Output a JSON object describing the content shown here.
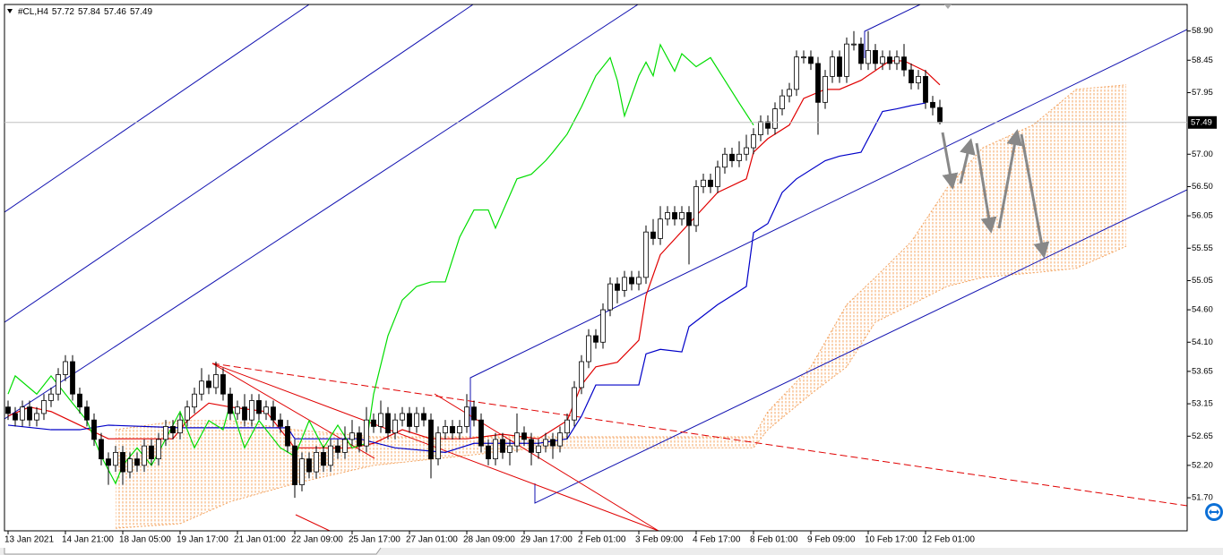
{
  "chart_data": {
    "type": "candlestick",
    "title": "#CL,H4",
    "categories": [
      "13 Jan 2021",
      null,
      null,
      null,
      null,
      null,
      null,
      null,
      "14 Jan 21:00",
      null,
      null,
      null,
      null,
      null,
      null,
      null,
      "18 Jan 05:00",
      null,
      null,
      null,
      null,
      null,
      null,
      null,
      "19 Jan 17:00",
      null,
      null,
      null,
      null,
      null,
      null,
      null,
      "21 Jan 01:00",
      null,
      null,
      null,
      null,
      null,
      null,
      null,
      "22 Jan 09:00",
      null,
      null,
      null,
      null,
      null,
      null,
      null,
      "25 Jan 17:00",
      null,
      null,
      null,
      null,
      null,
      null,
      null,
      "27 Jan 01:00",
      null,
      null,
      null,
      null,
      null,
      null,
      null,
      "28 Jan 09:00",
      null,
      null,
      null,
      null,
      null,
      null,
      null,
      "29 Jan 17:00",
      null,
      null,
      null,
      null,
      null,
      null,
      null,
      "2 Feb 01:00",
      null,
      null,
      null,
      null,
      null,
      null,
      null,
      "3 Feb 09:00",
      null,
      null,
      null,
      null,
      null,
      null,
      null,
      "4 Feb 17:00",
      null,
      null,
      null,
      null,
      null,
      null,
      null,
      "8 Feb 01:00",
      null,
      null,
      null,
      null,
      null,
      null,
      null,
      "9 Feb 09:00",
      null,
      null,
      null,
      null,
      null,
      null,
      null,
      "10 Feb 17:00",
      null,
      null,
      null,
      null,
      null,
      null,
      null,
      "12 Feb 01:00",
      null,
      null,
      null,
      null,
      null,
      null,
      null,
      null,
      null,
      null,
      null,
      null,
      null,
      null,
      null,
      null,
      null,
      null,
      null,
      null,
      null,
      null,
      null,
      null,
      null,
      null,
      null,
      null
    ],
    "ohlc": [
      [
        53.1,
        53.2,
        52.9,
        53.0
      ],
      [
        53.0,
        53.1,
        52.8,
        52.9
      ],
      [
        52.9,
        53.2,
        52.8,
        53.1
      ],
      [
        53.1,
        53.2,
        52.8,
        52.9
      ],
      [
        52.9,
        53.1,
        52.8,
        53.0
      ],
      [
        53.0,
        53.3,
        52.9,
        53.2
      ],
      [
        53.2,
        53.4,
        53.1,
        53.3
      ],
      [
        53.3,
        53.7,
        53.2,
        53.6
      ],
      [
        53.6,
        53.9,
        53.5,
        53.8
      ],
      [
        53.8,
        53.9,
        53.2,
        53.3
      ],
      [
        53.3,
        53.4,
        53.0,
        53.1
      ],
      [
        53.1,
        53.2,
        52.8,
        52.9
      ],
      [
        52.9,
        53.0,
        52.5,
        52.6
      ],
      [
        52.6,
        52.7,
        52.2,
        52.3
      ],
      [
        52.3,
        52.4,
        51.9,
        52.2
      ],
      [
        52.2,
        52.5,
        52.1,
        52.4
      ],
      [
        52.4,
        52.5,
        51.9,
        52.1
      ],
      [
        52.1,
        52.4,
        52.0,
        52.3
      ],
      [
        52.3,
        52.4,
        52.1,
        52.2
      ],
      [
        52.2,
        52.6,
        52.1,
        52.5
      ],
      [
        52.5,
        52.6,
        52.2,
        52.3
      ],
      [
        52.3,
        52.7,
        52.2,
        52.6
      ],
      [
        52.6,
        52.9,
        52.5,
        52.8
      ],
      [
        52.8,
        52.9,
        52.6,
        52.7
      ],
      [
        52.7,
        53.0,
        52.6,
        52.9
      ],
      [
        52.9,
        53.2,
        52.8,
        53.1
      ],
      [
        53.1,
        53.4,
        53.0,
        53.3
      ],
      [
        53.3,
        53.7,
        53.2,
        53.5
      ],
      [
        53.5,
        53.6,
        53.3,
        53.4
      ],
      [
        53.4,
        53.8,
        53.3,
        53.6
      ],
      [
        53.6,
        53.7,
        53.2,
        53.3
      ],
      [
        53.3,
        53.4,
        52.9,
        53.0
      ],
      [
        53.0,
        53.2,
        52.9,
        53.1
      ],
      [
        53.1,
        53.3,
        52.8,
        52.9
      ],
      [
        52.9,
        53.3,
        52.8,
        53.2
      ],
      [
        53.2,
        53.3,
        52.9,
        53.0
      ],
      [
        53.0,
        53.2,
        52.9,
        53.1
      ],
      [
        53.1,
        53.2,
        52.8,
        52.9
      ],
      [
        52.9,
        53.0,
        52.7,
        52.8
      ],
      [
        52.8,
        52.9,
        52.4,
        52.5
      ],
      [
        52.5,
        52.6,
        51.7,
        51.9
      ],
      [
        51.9,
        52.4,
        51.8,
        52.3
      ],
      [
        52.3,
        52.4,
        52.0,
        52.1
      ],
      [
        52.1,
        52.5,
        52.0,
        52.4
      ],
      [
        52.4,
        52.5,
        52.1,
        52.2
      ],
      [
        52.2,
        52.6,
        52.1,
        52.5
      ],
      [
        52.5,
        52.6,
        52.3,
        52.4
      ],
      [
        52.4,
        52.8,
        52.3,
        52.6
      ],
      [
        52.6,
        52.9,
        52.5,
        52.7
      ],
      [
        52.7,
        52.8,
        52.4,
        52.5
      ],
      [
        52.5,
        53.1,
        52.4,
        52.9
      ],
      [
        52.9,
        53.0,
        52.7,
        52.8
      ],
      [
        52.8,
        53.2,
        52.7,
        53.0
      ],
      [
        53.0,
        53.1,
        52.6,
        52.7
      ],
      [
        52.7,
        53.0,
        52.6,
        52.9
      ],
      [
        52.9,
        53.1,
        52.8,
        53.0
      ],
      [
        53.0,
        53.1,
        52.7,
        52.8
      ],
      [
        52.8,
        53.1,
        52.7,
        53.0
      ],
      [
        53.0,
        53.1,
        52.8,
        52.9
      ],
      [
        52.9,
        53.0,
        52.0,
        52.3
      ],
      [
        52.3,
        52.8,
        52.2,
        52.7
      ],
      [
        52.7,
        52.9,
        52.6,
        52.8
      ],
      [
        52.8,
        52.9,
        52.6,
        52.7
      ],
      [
        52.7,
        52.9,
        52.6,
        52.8
      ],
      [
        52.8,
        53.3,
        52.7,
        53.1
      ],
      [
        53.1,
        53.2,
        52.8,
        52.9
      ],
      [
        52.9,
        53.0,
        52.4,
        52.5
      ],
      [
        52.5,
        52.6,
        52.2,
        52.3
      ],
      [
        52.3,
        52.7,
        52.2,
        52.6
      ],
      [
        52.6,
        52.7,
        52.3,
        52.4
      ],
      [
        52.4,
        52.6,
        52.2,
        52.5
      ],
      [
        52.5,
        53.0,
        52.4,
        52.7
      ],
      [
        52.7,
        52.8,
        52.5,
        52.6
      ],
      [
        52.6,
        52.7,
        52.2,
        52.4
      ],
      [
        52.4,
        52.6,
        52.3,
        52.5
      ],
      [
        52.5,
        52.7,
        52.4,
        52.6
      ],
      [
        52.6,
        52.7,
        52.3,
        52.5
      ],
      [
        52.5,
        52.8,
        52.4,
        52.7
      ],
      [
        52.7,
        53.0,
        52.6,
        52.9
      ],
      [
        52.9,
        53.5,
        52.8,
        53.4
      ],
      [
        53.4,
        53.9,
        53.3,
        53.8
      ],
      [
        53.8,
        54.3,
        53.7,
        54.2
      ],
      [
        54.2,
        54.3,
        54.0,
        54.1
      ],
      [
        54.1,
        54.7,
        54.0,
        54.6
      ],
      [
        54.6,
        55.1,
        54.5,
        55.0
      ],
      [
        55.0,
        55.1,
        54.7,
        54.9
      ],
      [
        54.9,
        55.2,
        54.8,
        55.1
      ],
      [
        55.1,
        55.2,
        54.9,
        55.0
      ],
      [
        55.0,
        55.2,
        54.9,
        55.1
      ],
      [
        55.1,
        55.9,
        55.0,
        55.8
      ],
      [
        55.8,
        56.0,
        55.6,
        55.7
      ],
      [
        55.7,
        56.2,
        55.6,
        56.0
      ],
      [
        56.0,
        56.2,
        55.9,
        56.1
      ],
      [
        56.1,
        56.2,
        55.9,
        56.0
      ],
      [
        56.0,
        56.2,
        55.9,
        56.1
      ],
      [
        56.1,
        56.2,
        55.3,
        55.9
      ],
      [
        55.9,
        56.6,
        55.8,
        56.5
      ],
      [
        56.5,
        56.7,
        56.4,
        56.6
      ],
      [
        56.6,
        56.7,
        56.4,
        56.5
      ],
      [
        56.5,
        56.9,
        56.4,
        56.8
      ],
      [
        56.8,
        57.1,
        56.7,
        57.0
      ],
      [
        57.0,
        57.1,
        56.8,
        56.9
      ],
      [
        56.9,
        57.2,
        56.8,
        57.0
      ],
      [
        57.0,
        57.3,
        56.9,
        57.1
      ],
      [
        57.1,
        57.4,
        57.0,
        57.3
      ],
      [
        57.3,
        57.6,
        57.2,
        57.5
      ],
      [
        57.5,
        57.6,
        57.3,
        57.4
      ],
      [
        57.4,
        57.8,
        57.3,
        57.7
      ],
      [
        57.7,
        58.0,
        57.6,
        57.9
      ],
      [
        57.9,
        58.1,
        57.8,
        58.0
      ],
      [
        58.0,
        58.6,
        57.9,
        58.5
      ],
      [
        58.5,
        58.6,
        58.4,
        58.5
      ],
      [
        58.5,
        58.6,
        58.3,
        58.4
      ],
      [
        58.4,
        58.5,
        57.3,
        57.8
      ],
      [
        57.8,
        58.3,
        57.7,
        58.2
      ],
      [
        58.2,
        58.6,
        58.1,
        58.5
      ],
      [
        58.5,
        58.6,
        58.1,
        58.2
      ],
      [
        58.2,
        58.8,
        58.1,
        58.7
      ],
      [
        58.7,
        58.9,
        58.6,
        58.7
      ],
      [
        58.7,
        58.8,
        58.3,
        58.4
      ],
      [
        58.4,
        58.9,
        58.3,
        58.6
      ],
      [
        58.6,
        58.7,
        58.3,
        58.4
      ],
      [
        58.4,
        58.6,
        58.3,
        58.5
      ],
      [
        58.5,
        58.6,
        58.3,
        58.4
      ],
      [
        58.4,
        58.6,
        58.3,
        58.5
      ],
      [
        58.5,
        58.7,
        58.2,
        58.3
      ],
      [
        58.3,
        58.4,
        58.0,
        58.1
      ],
      [
        58.1,
        58.3,
        58.0,
        58.2
      ],
      [
        58.2,
        58.3,
        57.7,
        57.8
      ],
      [
        57.8,
        57.9,
        57.6,
        57.72
      ],
      [
        57.72,
        57.84,
        57.46,
        57.49
      ],
      null,
      null,
      null,
      null,
      null,
      null,
      null,
      null,
      null,
      null,
      null,
      null,
      null,
      null,
      null,
      null,
      null,
      null,
      null,
      null,
      null,
      null,
      null,
      null,
      null,
      null
    ],
    "up_color": "#ffffff",
    "down_color": "#000000",
    "lines": [
      {
        "color": "#e00000",
        "x": [
          0,
          3,
          6,
          10,
          14,
          18,
          23,
          25,
          28,
          31,
          36,
          40,
          44,
          48,
          51,
          55,
          59,
          64,
          69,
          74,
          78,
          80,
          82,
          85,
          88,
          89,
          91,
          95,
          99,
          103,
          104,
          106,
          109,
          111,
          114,
          116,
          119,
          123,
          125,
          128,
          130
        ],
        "values": [
          52.96,
          53.1,
          53.03,
          52.82,
          52.61,
          52.61,
          52.61,
          52.89,
          53.16,
          53.1,
          53.03,
          52.47,
          52.47,
          52.47,
          52.54,
          52.75,
          52.61,
          52.61,
          52.68,
          52.61,
          52.89,
          53.44,
          53.72,
          53.79,
          54.13,
          54.82,
          55.45,
          55.93,
          56.41,
          56.62,
          57.03,
          57.24,
          57.45,
          57.86,
          58.0,
          58.0,
          58.14,
          58.44,
          58.44,
          58.28,
          58.07
        ]
      },
      {
        "color": "#0000c8",
        "x": [
          0,
          6,
          10,
          14,
          24,
          39,
          40,
          49,
          54,
          61,
          65,
          74,
          78,
          80,
          82,
          88,
          89,
          91,
          94,
          95,
          99,
          100,
          103,
          104,
          106,
          108,
          110,
          114,
          116,
          119,
          121,
          122,
          124,
          126,
          128
        ],
        "values": [
          52.82,
          52.75,
          52.75,
          52.82,
          52.78,
          52.78,
          52.61,
          52.61,
          52.47,
          52.4,
          52.54,
          52.54,
          52.61,
          52.96,
          53.44,
          53.44,
          53.92,
          53.99,
          53.95,
          54.34,
          54.68,
          54.75,
          54.96,
          55.79,
          55.93,
          56.41,
          56.62,
          56.9,
          56.97,
          57.03,
          57.45,
          57.66,
          57.7,
          57.75,
          57.79
        ]
      },
      {
        "color": "#00dd00",
        "x": [
          0,
          1,
          4,
          6,
          9,
          11,
          13,
          15,
          16,
          18,
          20,
          21,
          24,
          26,
          28,
          30,
          31,
          33,
          35,
          38,
          40,
          42,
          44,
          46,
          48,
          50,
          51,
          53,
          55,
          57,
          59,
          61,
          63,
          65,
          67,
          68,
          71,
          73,
          75,
          76,
          78,
          80,
          82,
          84,
          85,
          86,
          88,
          89,
          90,
          91,
          93,
          94,
          96,
          98,
          100,
          102,
          104
        ],
        "values": [
          53.3,
          53.58,
          53.3,
          53.58,
          53.16,
          52.89,
          52.34,
          51.92,
          52.2,
          52.47,
          52.2,
          52.4,
          53.03,
          52.47,
          52.89,
          52.75,
          53.16,
          52.47,
          52.89,
          52.47,
          52.34,
          52.89,
          52.47,
          52.82,
          52.47,
          52.54,
          53.3,
          54.2,
          54.75,
          54.96,
          55.03,
          55.03,
          55.72,
          56.14,
          56.14,
          55.86,
          56.62,
          56.69,
          56.9,
          57.03,
          57.31,
          57.73,
          58.21,
          58.49,
          58.14,
          57.59,
          58.21,
          58.42,
          58.21,
          58.69,
          58.28,
          58.55,
          58.35,
          58.49,
          58.14,
          57.79,
          57.45
        ]
      }
    ],
    "cloud": {
      "color": "#f4a460",
      "x": [
        15,
        24,
        31,
        40,
        51,
        74,
        104,
        106,
        112,
        117,
        121,
        126,
        131,
        136,
        143,
        149,
        156
      ],
      "upper": [
        52.75,
        52.89,
        52.89,
        52.75,
        52.64,
        52.64,
        52.64,
        53.03,
        53.72,
        54.68,
        55.1,
        55.65,
        56.48,
        57.1,
        57.45,
        58.0,
        58.07
      ],
      "lower": [
        51.23,
        51.3,
        51.64,
        51.92,
        52.2,
        52.47,
        52.47,
        52.75,
        53.3,
        53.72,
        54.41,
        54.68,
        54.96,
        55.1,
        55.17,
        55.24,
        55.58
      ]
    },
    "ylim": [
      51.19,
      59.31
    ],
    "yticks": [
      {
        "value": 58.9,
        "label": "58.90"
      },
      58.45,
      57.95,
      {
        "value": 57.0,
        "label": "57.00"
      },
      {
        "value": 56.5,
        "label": "56.50"
      },
      56.05,
      55.55,
      55.05,
      {
        "value": 54.6,
        "label": "54.60"
      },
      {
        "value": 54.1,
        "label": "54.10"
      },
      53.65,
      53.15,
      52.65,
      {
        "value": 52.2,
        "label": "52.20"
      },
      {
        "value": 51.7,
        "label": "51.70"
      }
    ]
  }
}
